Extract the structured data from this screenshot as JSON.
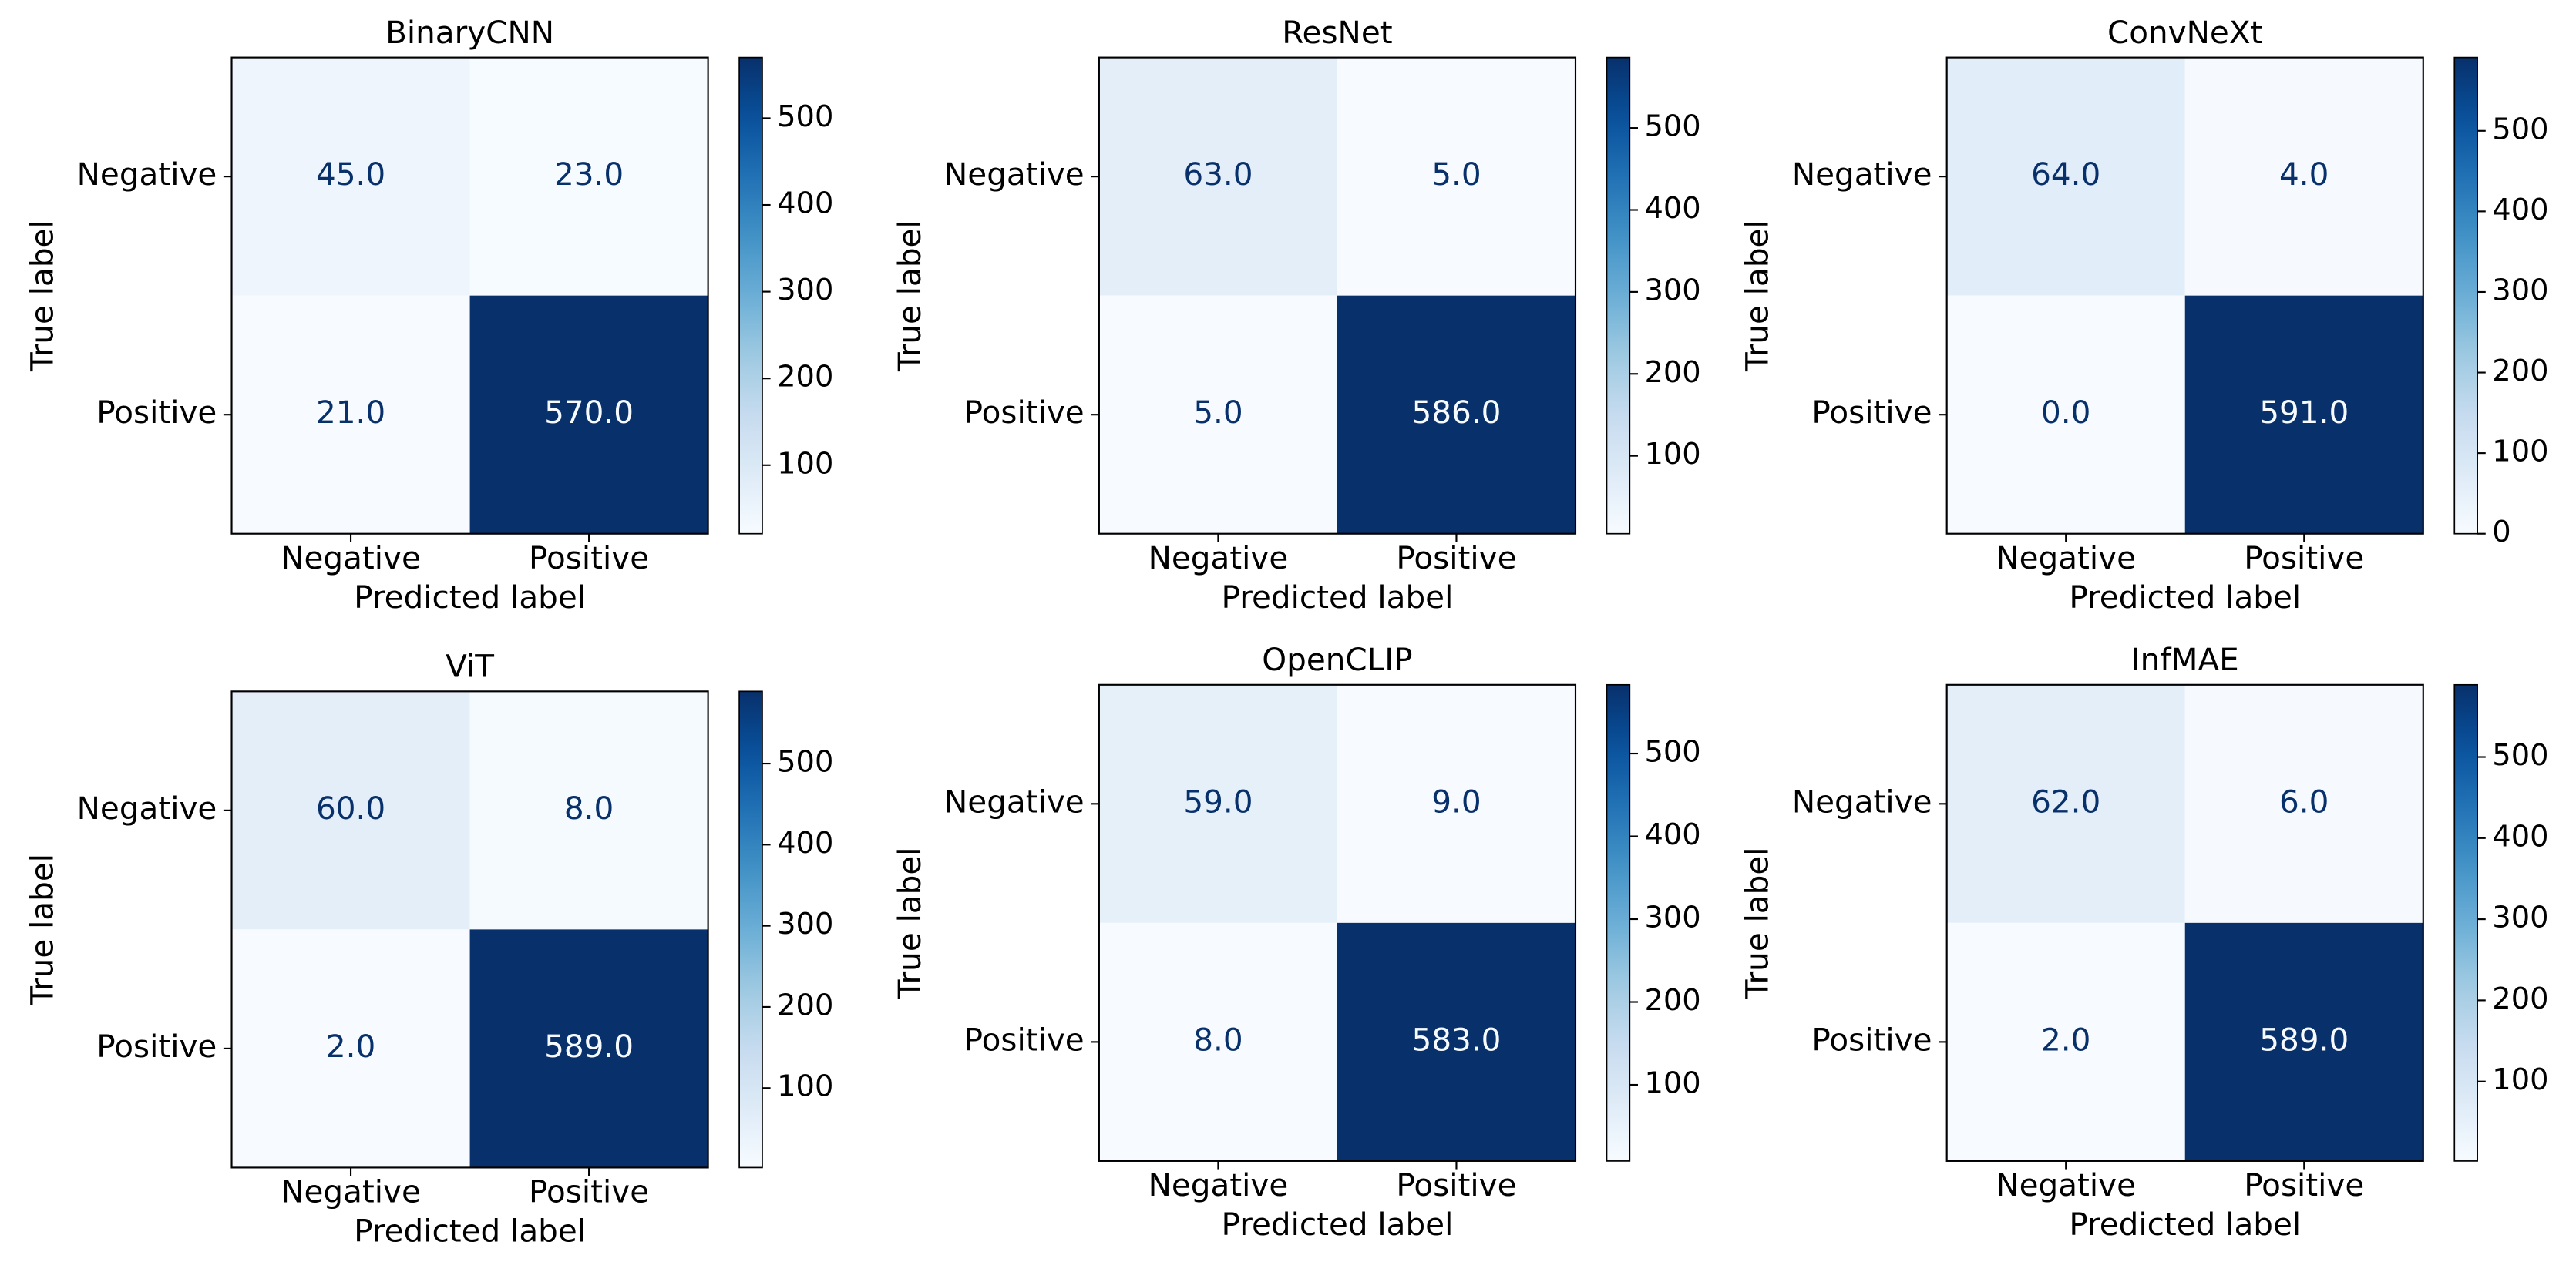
{
  "chart_data": [
    {
      "type": "heatmap",
      "title": "BinaryCNN",
      "xlabel": "Predicted label",
      "ylabel": "True label",
      "x_categories": [
        "Negative",
        "Positive"
      ],
      "y_categories": [
        "Negative",
        "Positive"
      ],
      "values": [
        [
          45,
          23
        ],
        [
          21,
          570
        ]
      ],
      "value_labels": [
        [
          "45.0",
          "23.0"
        ],
        [
          "21.0",
          "570.0"
        ]
      ],
      "colormap": "Blues",
      "clim": [
        21,
        570
      ],
      "cticks": [
        100,
        200,
        300,
        400,
        500
      ]
    },
    {
      "type": "heatmap",
      "title": "ResNet",
      "xlabel": "Predicted label",
      "ylabel": "True label",
      "x_categories": [
        "Negative",
        "Positive"
      ],
      "y_categories": [
        "Negative",
        "Positive"
      ],
      "values": [
        [
          63,
          5
        ],
        [
          5,
          586
        ]
      ],
      "value_labels": [
        [
          "63.0",
          "5.0"
        ],
        [
          "5.0",
          "586.0"
        ]
      ],
      "colormap": "Blues",
      "clim": [
        5,
        586
      ],
      "cticks": [
        100,
        200,
        300,
        400,
        500
      ]
    },
    {
      "type": "heatmap",
      "title": "ConvNeXt",
      "xlabel": "Predicted label",
      "ylabel": "True label",
      "x_categories": [
        "Negative",
        "Positive"
      ],
      "y_categories": [
        "Negative",
        "Positive"
      ],
      "values": [
        [
          64,
          4
        ],
        [
          0,
          591
        ]
      ],
      "value_labels": [
        [
          "64.0",
          "4.0"
        ],
        [
          "0.0",
          "591.0"
        ]
      ],
      "colormap": "Blues",
      "clim": [
        0,
        591
      ],
      "cticks": [
        0,
        100,
        200,
        300,
        400,
        500
      ]
    },
    {
      "type": "heatmap",
      "title": "ViT",
      "xlabel": "Predicted label",
      "ylabel": "True label",
      "x_categories": [
        "Negative",
        "Positive"
      ],
      "y_categories": [
        "Negative",
        "Positive"
      ],
      "values": [
        [
          60,
          8
        ],
        [
          2,
          589
        ]
      ],
      "value_labels": [
        [
          "60.0",
          "8.0"
        ],
        [
          "2.0",
          "589.0"
        ]
      ],
      "colormap": "Blues",
      "clim": [
        2,
        589
      ],
      "cticks": [
        100,
        200,
        300,
        400,
        500
      ]
    },
    {
      "type": "heatmap",
      "title": "OpenCLIP",
      "xlabel": "Predicted label",
      "ylabel": "True label",
      "x_categories": [
        "Negative",
        "Positive"
      ],
      "y_categories": [
        "Negative",
        "Positive"
      ],
      "values": [
        [
          59,
          9
        ],
        [
          8,
          583
        ]
      ],
      "value_labels": [
        [
          "59.0",
          "9.0"
        ],
        [
          "8.0",
          "583.0"
        ]
      ],
      "colormap": "Blues",
      "clim": [
        8,
        583
      ],
      "cticks": [
        100,
        200,
        300,
        400,
        500
      ]
    },
    {
      "type": "heatmap",
      "title": "InfMAE",
      "xlabel": "Predicted label",
      "ylabel": "True label",
      "x_categories": [
        "Negative",
        "Positive"
      ],
      "y_categories": [
        "Negative",
        "Positive"
      ],
      "values": [
        [
          62,
          6
        ],
        [
          2,
          589
        ]
      ],
      "value_labels": [
        [
          "62.0",
          "6.0"
        ],
        [
          "2.0",
          "589.0"
        ]
      ],
      "colormap": "Blues",
      "clim": [
        2,
        589
      ],
      "cticks": [
        100,
        200,
        300,
        400,
        500
      ]
    }
  ]
}
